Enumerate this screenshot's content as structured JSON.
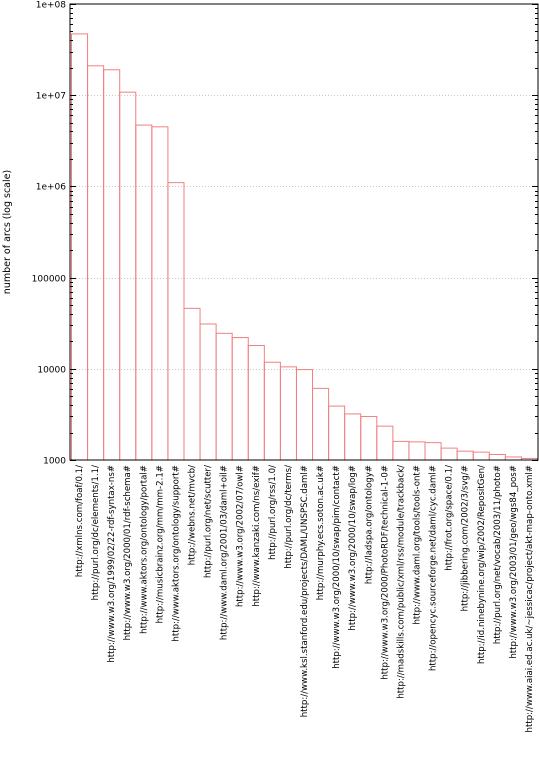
{
  "chart_data": {
    "type": "bar",
    "ylabel": "number of arcs (log scale)",
    "xlabel": "",
    "title": "",
    "y_scale": "log",
    "ylim": [
      1000,
      100000000
    ],
    "grid": true,
    "y_ticks": [
      {
        "value": 1000,
        "label": "1000"
      },
      {
        "value": 10000,
        "label": "10000"
      },
      {
        "value": 100000,
        "label": "100000"
      },
      {
        "value": 1000000,
        "label": "1e+06"
      },
      {
        "value": 10000000,
        "label": "1e+07"
      },
      {
        "value": 100000000,
        "label": "1e+08"
      }
    ],
    "categories": [
      "http://xmlns.com/foaf/0.1/",
      "http://purl.org/dc/elements/1.1/",
      "http://www.w3.org/1999/02/22-rdf-syntax-ns#",
      "http://www.w3.org/2000/01/rdf-schema#",
      "http://www.aktors.org/ontology/portal#",
      "http://musicbrainz.org/mm/mm-2.1#",
      "http://www.aktors.org/ontology/support#",
      "http://webns.net/mvcb/",
      "http://purl.org/net/scutter/",
      "http://www.daml.org/2001/03/daml+oil#",
      "http://www.w3.org/2002/07/owl#",
      "http://www.kanzaki.com/ns/exif#",
      "http://purl.org/rss/1.0/",
      "http://purl.org/dc/terms/",
      "http://www.ksl.stanford.edu/projects/DAML/UNSPSC.daml#",
      "http://murphy.ecs.soton.ac.uk#",
      "http://www.w3.org/2000/10/swap/pim/contact#",
      "http://www.w3.org/2000/10/swap/log#",
      "http://ladspa.org/ontology#",
      "http://www.w3.org/2000/PhotoRDF/technical-1-0#",
      "http://madskills.com/public/xml/rss/module/trackback/",
      "http://www.daml.org/tools/tools-ont#",
      "http://opencyc.sourceforge.net/daml/cyc.daml#",
      "http://frot.org/space/0.1/",
      "http://jibbering.com/2002/3/svg/#",
      "http://id.ninebynine.org/wip/2002/RepositGen/",
      "http://purl.org/net/vocab/2003/11/photo#",
      "http://www.w3.org/2003/01/geo/wgs84_pos#",
      "http://www.aiai.ed.ac.uk/~jessicac/project/akt-map-onto.xml#"
    ],
    "values": [
      47000000,
      21000000,
      19000000,
      10800000,
      4700000,
      4500000,
      1100000,
      46000,
      31000,
      24500,
      22000,
      18000,
      11800,
      10500,
      9800,
      6100,
      3900,
      3200,
      3000,
      2350,
      1600,
      1580,
      1550,
      1350,
      1250,
      1220,
      1150,
      1080,
      1040
    ],
    "colors": {
      "bar_stroke": "#f08080",
      "grid": "#c8c8c8",
      "frame": "#000000"
    }
  }
}
